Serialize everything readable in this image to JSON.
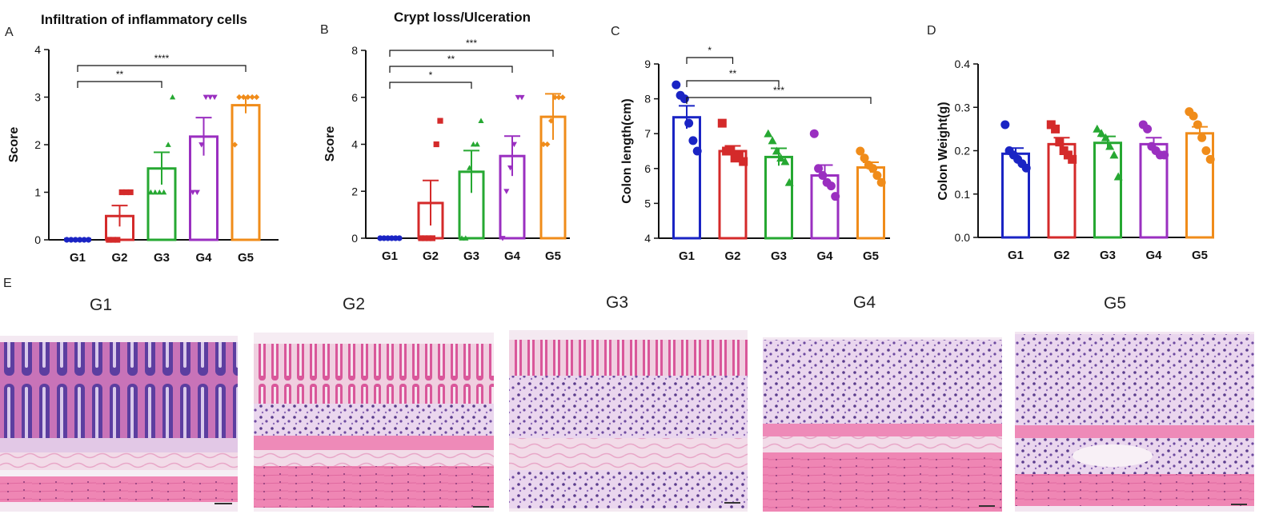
{
  "colors": {
    "G1": "#1a24c4",
    "G2": "#d42a2a",
    "G3": "#26a832",
    "G4": "#9a2fc0",
    "G5": "#f08c1a"
  },
  "chart_data": [
    {
      "panel": "A",
      "type": "bar",
      "title": "Infiltration of inflammatory cells",
      "xlabel": "",
      "ylabel": "Score",
      "ylim": [
        0,
        4
      ],
      "yticks": [
        "0",
        "1",
        "2",
        "3",
        "4"
      ],
      "categories": [
        "G1",
        "G2",
        "G3",
        "G4",
        "G5"
      ],
      "values": [
        0,
        0.5,
        1.5,
        2.17,
        2.83
      ],
      "errors": [
        0,
        0.22,
        0.34,
        0.4,
        0.17
      ],
      "points": [
        [
          0,
          0,
          0,
          0,
          0,
          0
        ],
        [
          0,
          0,
          0,
          1,
          1,
          1
        ],
        [
          1,
          1,
          1,
          1,
          2,
          3
        ],
        [
          1,
          1,
          2,
          3,
          3,
          3
        ],
        [
          2,
          3,
          3,
          3,
          3,
          3
        ]
      ],
      "markers": [
        "circle",
        "square",
        "triangle",
        "triangle-down",
        "diamond"
      ],
      "significance": [
        {
          "from": 0,
          "to": 2,
          "label": "**"
        },
        {
          "from": 0,
          "to": 4,
          "label": "****"
        }
      ]
    },
    {
      "panel": "B",
      "type": "bar",
      "title": "Crypt loss/Ulceration",
      "xlabel": "",
      "ylabel": "Score",
      "ylim": [
        0,
        8
      ],
      "yticks": [
        "0",
        "2",
        "4",
        "6",
        "8"
      ],
      "categories": [
        "G1",
        "G2",
        "G3",
        "G4",
        "G5"
      ],
      "values": [
        0,
        1.5,
        2.83,
        3.5,
        5.17
      ],
      "errors": [
        0,
        0.96,
        0.9,
        0.85,
        0.98
      ],
      "points": [
        [
          0,
          0,
          0,
          0,
          0,
          0
        ],
        [
          0,
          0,
          0,
          0,
          4,
          5
        ],
        [
          0,
          0,
          3,
          4,
          4,
          5
        ],
        [
          0,
          2,
          3,
          4,
          6,
          6
        ],
        [
          4,
          4,
          5,
          6,
          6,
          6
        ]
      ],
      "markers": [
        "circle",
        "square",
        "triangle",
        "triangle-down",
        "diamond"
      ],
      "significance": [
        {
          "from": 0,
          "to": 2,
          "label": "*"
        },
        {
          "from": 0,
          "to": 3,
          "label": "**"
        },
        {
          "from": 0,
          "to": 4,
          "label": "***"
        }
      ]
    },
    {
      "panel": "C",
      "type": "bar",
      "title": "",
      "xlabel": "",
      "ylabel": "Colon length(cm)",
      "ylim": [
        4,
        9
      ],
      "yticks": [
        "4",
        "5",
        "6",
        "7",
        "8",
        "9"
      ],
      "categories": [
        "G1",
        "G2",
        "G3",
        "G4",
        "G5"
      ],
      "values": [
        7.47,
        6.5,
        6.33,
        5.8,
        6.03
      ],
      "errors": [
        0.33,
        0.15,
        0.25,
        0.3,
        0.15
      ],
      "points": [
        [
          8.4,
          8.1,
          8.0,
          7.3,
          6.8,
          6.5
        ],
        [
          7.3,
          6.5,
          6.5,
          6.3,
          6.4,
          6.2
        ],
        [
          7.0,
          6.8,
          6.5,
          6.3,
          6.2,
          5.6
        ],
        [
          7.0,
          6.0,
          5.8,
          5.6,
          5.5,
          5.2
        ],
        [
          6.5,
          6.3,
          6.1,
          6.0,
          5.8,
          5.6
        ]
      ],
      "markers": [
        "circle",
        "square",
        "triangle",
        "circle",
        "circle"
      ],
      "significance": [
        {
          "from": 0,
          "to": 1,
          "label": "*"
        },
        {
          "from": 0,
          "to": 2,
          "label": "**"
        },
        {
          "from": 0,
          "to": 4,
          "label": "***"
        }
      ]
    },
    {
      "panel": "D",
      "type": "bar",
      "title": "",
      "xlabel": "",
      "ylabel": "Colon Weight(g)",
      "ylim": [
        0,
        0.4
      ],
      "yticks": [
        "0.0",
        "0.1",
        "0.2",
        "0.3",
        "0.4"
      ],
      "categories": [
        "G1",
        "G2",
        "G3",
        "G4",
        "G5"
      ],
      "values": [
        0.193,
        0.215,
        0.218,
        0.215,
        0.24
      ],
      "errors": [
        0.013,
        0.015,
        0.015,
        0.015,
        0.015
      ],
      "points": [
        [
          0.26,
          0.2,
          0.19,
          0.18,
          0.17,
          0.16
        ],
        [
          0.26,
          0.25,
          0.22,
          0.2,
          0.19,
          0.18
        ],
        [
          0.25,
          0.24,
          0.23,
          0.21,
          0.19,
          0.14
        ],
        [
          0.26,
          0.25,
          0.21,
          0.2,
          0.19,
          0.19
        ],
        [
          0.29,
          0.28,
          0.26,
          0.23,
          0.2,
          0.18
        ]
      ],
      "markers": [
        "circle",
        "square",
        "triangle",
        "circle",
        "circle"
      ],
      "significance": []
    }
  ],
  "histology": {
    "label": "E",
    "groups": [
      "G1",
      "G2",
      "G3",
      "G4",
      "G5"
    ]
  }
}
